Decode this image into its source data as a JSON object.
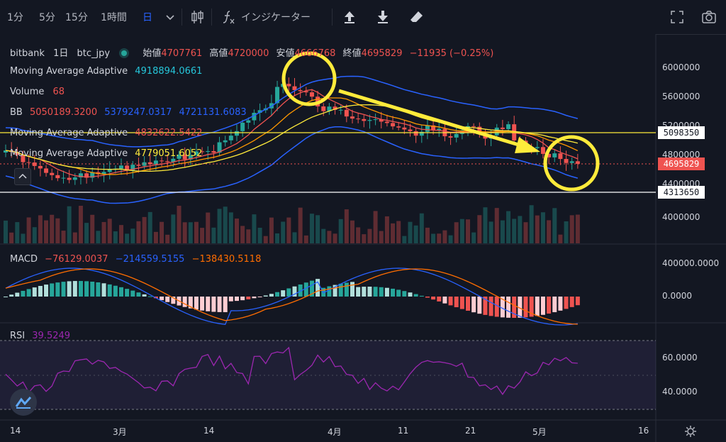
{
  "toolbar": {
    "intervals": [
      "1分",
      "5分",
      "15分",
      "1時間",
      "日"
    ],
    "active_interval": "日",
    "indicators_label": "インジケーター"
  },
  "header": {
    "exchange": "bitbank",
    "timeframe": "1日",
    "symbol": "btc_jpy",
    "open_label": "始値",
    "open": "4707761",
    "high_label": "高値",
    "high": "4720000",
    "low_label": "安値",
    "low": "4666768",
    "close_label": "終値",
    "close": "4695829",
    "change": "−11935 (−0.25%)"
  },
  "legend": {
    "maa1_name": "Moving Average Adaptive",
    "maa1_value": "4918894.0661",
    "volume_name": "Volume",
    "volume_value": "68",
    "bb_name": "BB",
    "bb_basis": "5050189.3200",
    "bb_upper": "5379247.0317",
    "bb_lower": "4721131.6083",
    "maa2_name": "Moving Average Adaptive",
    "maa2_value": "4832622.5422",
    "maa3_name": "Moving Average Adaptive",
    "maa3_value": "4779051.6052"
  },
  "price_axis": {
    "ticks": [
      "6000000",
      "5600000",
      "5200000",
      "4800000",
      "4400000",
      "4000000"
    ],
    "line_yellow": "5098350",
    "current": "4695829",
    "line_white": "4313650"
  },
  "macd": {
    "name": "MACD",
    "v1": "−76129.0037",
    "v2": "−214559.5155",
    "v3": "−138430.5118",
    "ticks": [
      "400000.0000",
      "0.0000"
    ]
  },
  "rsi": {
    "name": "RSI",
    "value": "39.5249",
    "ticks": [
      "60.0000",
      "40.0000"
    ]
  },
  "time_axis": [
    "14",
    "3月",
    "14",
    "4月",
    "11",
    "21",
    "5月",
    "16"
  ],
  "colors": {
    "bg": "#131722",
    "up": "#26a69a",
    "down": "#ef5350",
    "yellow": "#ffeb3b",
    "bb": "#2962ff",
    "rsi": "#9c27b0",
    "macd_signal": "#ff6d00"
  }
}
